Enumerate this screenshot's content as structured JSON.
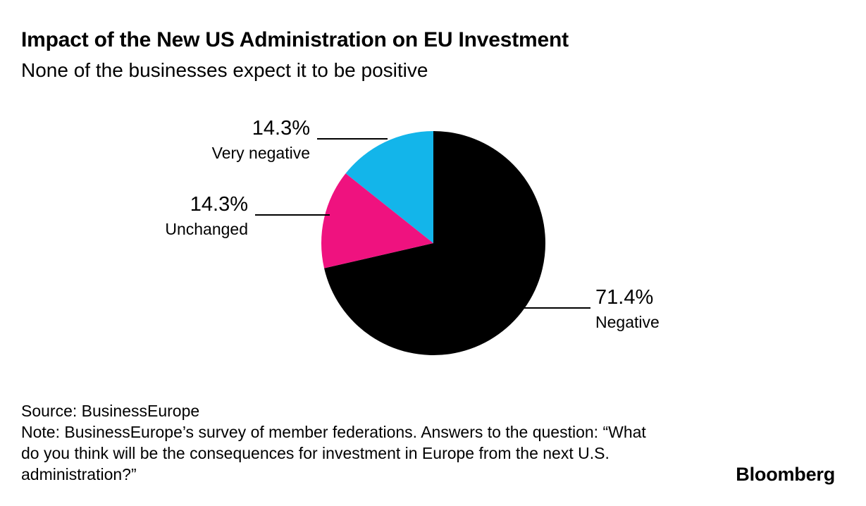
{
  "header": {
    "title": "Impact of the New US Administration on EU Investment",
    "subtitle": "None of the businesses expect it to be positive"
  },
  "chart_data": {
    "type": "pie",
    "title": "Impact of the New US Administration on EU Investment",
    "subtitle": "None of the businesses expect it to be positive",
    "start_angle_deg": 0,
    "direction": "clockwise",
    "slices": [
      {
        "label": "Negative",
        "value": 71.4,
        "display": "71.4%",
        "color": "#000000"
      },
      {
        "label": "Unchanged",
        "value": 14.3,
        "display": "14.3%",
        "color": "#ef127f"
      },
      {
        "label": "Very negative",
        "value": 14.3,
        "display": "14.3%",
        "color": "#13b5ea"
      }
    ]
  },
  "footer": {
    "source": "Source: BusinessEurope",
    "note": "Note: BusinessEurope’s survey of member federations. Answers to the question: “What do you think will be the consequences for investment in Europe from the next U.S. administration?”"
  },
  "branding": {
    "logo": "Bloomberg"
  }
}
